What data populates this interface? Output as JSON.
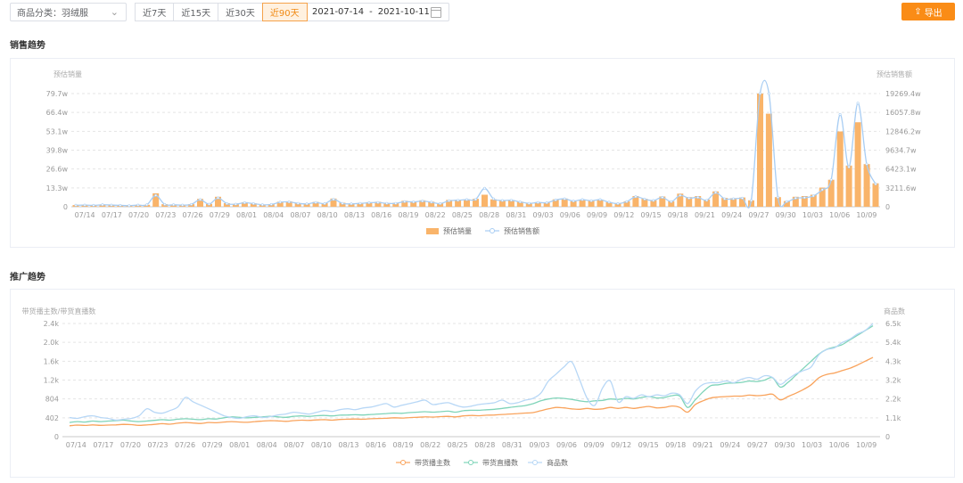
{
  "toolbar": {
    "category_label": "商品分类：羽绒服",
    "ranges": [
      "近7天",
      "近15天",
      "近30天",
      "近90天"
    ],
    "active_range": "近90天",
    "date_start": "2021-07-14",
    "date_sep": "-",
    "date_end": "2021-10-11",
    "export_label": "导出",
    "accent_color": "#fa8c16"
  },
  "sections": {
    "sales_title": "销售趋势",
    "promo_title": "推广趋势"
  },
  "chart_data": [
    {
      "type": "bar",
      "title": "销售趋势",
      "ylabel_left": "预估销量",
      "ylabel_right": "预估销售额",
      "yticks_left": [
        "0",
        "13.3w",
        "26.6w",
        "39.8w",
        "53.1w",
        "66.4w",
        "79.7w"
      ],
      "yticks_right": [
        "0",
        "3211.6w",
        "6423.1w",
        "9634.7w",
        "12846.2w",
        "16057.8w",
        "19269.4w"
      ],
      "ylim_left": [
        0,
        79.7
      ],
      "ylim_right": [
        0,
        19269.4
      ],
      "xticks": [
        "07/14",
        "07/17",
        "07/20",
        "07/23",
        "07/26",
        "07/29",
        "08/01",
        "08/04",
        "08/07",
        "08/10",
        "08/13",
        "08/16",
        "08/19",
        "08/22",
        "08/25",
        "08/28",
        "08/31",
        "09/03",
        "09/06",
        "09/09",
        "09/12",
        "09/15",
        "09/18",
        "09/21",
        "09/24",
        "09/27",
        "09/30",
        "10/03",
        "10/06",
        "10/09"
      ],
      "series": [
        {
          "name": "预估销量",
          "color": "#f9b46a",
          "unit": "w",
          "values": [
            1.2,
            1.4,
            1.1,
            1.6,
            1.3,
            1.2,
            1.0,
            1.3,
            1.4,
            9.5,
            1.8,
            1.6,
            1.4,
            1.8,
            5.5,
            2.0,
            7.0,
            2.5,
            2.0,
            3.2,
            2.4,
            1.6,
            1.8,
            3.5,
            3.8,
            2.6,
            2.2,
            3.4,
            2.5,
            5.8,
            2.8,
            2.2,
            2.6,
            3.2,
            3.5,
            2.6,
            2.8,
            4.2,
            3.8,
            4.5,
            3.6,
            2.5,
            4.8,
            5.0,
            5.2,
            5.6,
            8.5,
            5.2,
            4.5,
            4.6,
            3.6,
            2.4,
            3.2,
            2.8,
            5.2,
            5.8,
            3.8,
            5.0,
            4.2,
            5.0,
            3.2,
            2.2,
            3.8,
            7.5,
            5.6,
            4.5,
            7.2,
            3.8,
            9.2,
            6.8,
            7.5,
            5.0,
            10.8,
            6.2,
            6.0,
            6.5,
            4.5,
            79.7,
            65.5,
            6.8,
            4.0,
            7.0,
            7.5,
            8.5,
            13.5,
            19.0,
            53.0,
            29.0,
            59.5,
            30.0,
            16.5
          ]
        },
        {
          "name": "预估销售额",
          "color": "#a8cdf3",
          "unit": "w",
          "values": [
            261,
            290,
            242,
            338,
            290,
            242,
            193,
            290,
            338,
            1934,
            387,
            338,
            290,
            387,
            1209,
            435,
            1499,
            532,
            435,
            677,
            532,
            338,
            387,
            774,
            822,
            580,
            483,
            725,
            532,
            1257,
            580,
            483,
            580,
            677,
            725,
            580,
            580,
            870,
            822,
            967,
            774,
            532,
            1016,
            1112,
            1209,
            1257,
            3143,
            1354,
            1064,
            1112,
            822,
            580,
            725,
            677,
            1160,
            1354,
            967,
            1209,
            1016,
            1209,
            774,
            532,
            870,
            1693,
            1306,
            1064,
            1596,
            870,
            1934,
            1451,
            1596,
            1112,
            2418,
            1354,
            1354,
            1451,
            1064,
            19269,
            19269,
            1596,
            870,
            1451,
            1548,
            1838,
            2901,
            4594,
            15717,
            6770,
            17650,
            7253,
            3868
          ]
        }
      ]
    },
    {
      "type": "line",
      "title": "推广趋势",
      "ylabel_left": "带货播主数/带货直播数",
      "ylabel_right": "商品数",
      "yticks_left": [
        "0",
        "402",
        "804",
        "1.2k",
        "1.6k",
        "2.0k",
        "2.4k"
      ],
      "yticks_right": [
        "0",
        "1.1k",
        "2.2k",
        "3.2k",
        "4.3k",
        "5.4k",
        "6.5k"
      ],
      "ylim_left": [
        0,
        2400
      ],
      "ylim_right": [
        0,
        6500
      ],
      "xticks": [
        "07/14",
        "07/17",
        "07/20",
        "07/23",
        "07/26",
        "07/29",
        "08/01",
        "08/04",
        "08/07",
        "08/10",
        "08/13",
        "08/16",
        "08/19",
        "08/22",
        "08/25",
        "08/28",
        "08/31",
        "09/03",
        "09/06",
        "09/09",
        "09/12",
        "09/15",
        "09/18",
        "09/21",
        "09/24",
        "09/27",
        "09/30",
        "10/03",
        "10/06",
        "10/09"
      ],
      "series": [
        {
          "name": "带货播主数",
          "color": "#f9a35c",
          "axis": "left",
          "values": [
            230,
            245,
            238,
            250,
            240,
            245,
            250,
            260,
            255,
            240,
            250,
            260,
            275,
            265,
            285,
            300,
            290,
            280,
            300,
            295,
            310,
            320,
            310,
            305,
            320,
            330,
            340,
            335,
            325,
            340,
            350,
            345,
            355,
            360,
            350,
            365,
            370,
            375,
            370,
            380,
            385,
            390,
            400,
            395,
            405,
            410,
            420,
            415,
            425,
            430,
            420,
            440,
            450,
            445,
            455,
            460,
            470,
            480,
            490,
            500,
            510,
            550,
            590,
            620,
            610,
            590,
            580,
            600,
            580,
            590,
            620,
            600,
            620,
            600,
            620,
            640,
            610,
            620,
            650,
            620,
            520,
            680,
            760,
            820,
            840,
            850,
            860,
            860,
            880,
            870,
            880,
            900,
            780,
            850,
            920,
            1000,
            1100,
            1250,
            1320,
            1350,
            1400,
            1450,
            1520,
            1600,
            1680
          ]
        },
        {
          "name": "带货直播数",
          "color": "#7fd4b9",
          "axis": "left",
          "values": [
            300,
            320,
            310,
            330,
            320,
            330,
            340,
            350,
            330,
            320,
            330,
            345,
            360,
            350,
            370,
            380,
            370,
            360,
            380,
            375,
            400,
            420,
            410,
            400,
            410,
            420,
            430,
            420,
            410,
            430,
            440,
            430,
            445,
            450,
            440,
            455,
            460,
            465,
            460,
            470,
            480,
            490,
            500,
            495,
            510,
            520,
            530,
            520,
            530,
            540,
            520,
            550,
            560,
            560,
            570,
            580,
            600,
            620,
            640,
            660,
            700,
            760,
            800,
            820,
            810,
            790,
            760,
            740,
            760,
            770,
            800,
            790,
            810,
            800,
            830,
            850,
            820,
            830,
            870,
            860,
            620,
            780,
            950,
            1080,
            1100,
            1130,
            1140,
            1150,
            1180,
            1170,
            1200,
            1250,
            1050,
            1150,
            1300,
            1450,
            1600,
            1750,
            1850,
            1900,
            1950,
            2050,
            2150,
            2250,
            2350
          ]
        },
        {
          "name": "商品数",
          "color": "#b7d7f6",
          "axis": "right",
          "values": [
            1100,
            1050,
            1150,
            1200,
            1100,
            1050,
            950,
            1000,
            1050,
            1200,
            1600,
            1400,
            1350,
            1500,
            1700,
            2250,
            2000,
            1800,
            1600,
            1400,
            1200,
            1100,
            1050,
            1150,
            1200,
            1100,
            1150,
            1250,
            1300,
            1400,
            1350,
            1300,
            1400,
            1500,
            1450,
            1550,
            1600,
            1550,
            1650,
            1700,
            1800,
            1900,
            1700,
            1800,
            1900,
            2000,
            2100,
            1850,
            1900,
            1950,
            1800,
            1700,
            1750,
            1850,
            1900,
            1950,
            2100,
            1900,
            1950,
            2100,
            2200,
            2500,
            3200,
            3600,
            4000,
            4300,
            3300,
            2200,
            1800,
            2800,
            3200,
            2000,
            2300,
            2200,
            2400,
            2300,
            2400,
            2350,
            2500,
            2400,
            1900,
            2600,
            3000,
            3100,
            3100,
            3200,
            3100,
            3300,
            3400,
            3300,
            3500,
            3400,
            3000,
            3300,
            3600,
            3800,
            4000,
            4700,
            5000,
            5100,
            5400,
            5600,
            5900,
            6100,
            6500
          ]
        }
      ]
    }
  ]
}
